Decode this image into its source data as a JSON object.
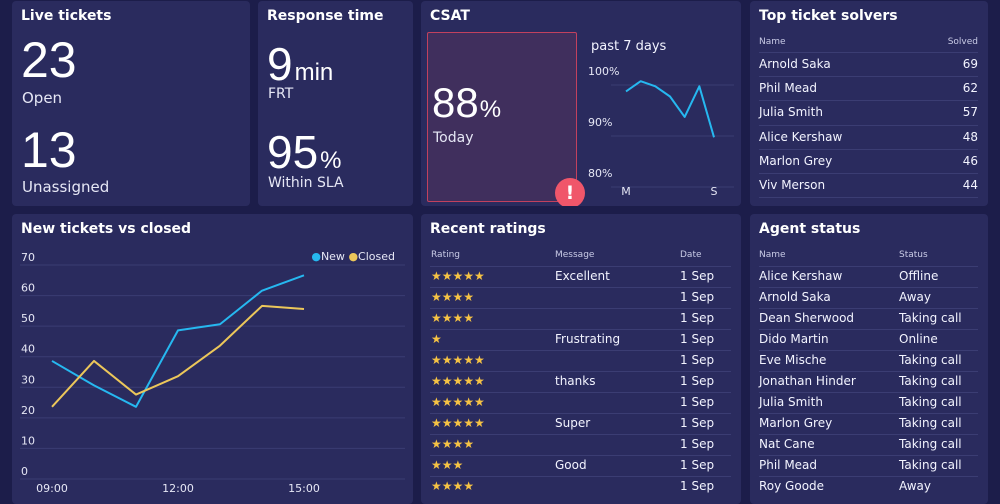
{
  "live_tickets": {
    "title": "Live tickets",
    "open_value": "23",
    "open_label": "Open",
    "unassigned_value": "13",
    "unassigned_label": "Unassigned"
  },
  "response_time": {
    "title": "Response time",
    "frt_value": "9",
    "frt_unit": "min",
    "frt_label": "FRT",
    "sla_value": "95",
    "sla_unit": "%",
    "sla_label": "Within SLA"
  },
  "csat": {
    "title": "CSAT",
    "today_value": "88",
    "today_unit": "%",
    "today_label": "Today",
    "alert_icon": "exclamation-icon",
    "alert_color": "#f0566a",
    "trend_title": "past 7 days",
    "chart_data": {
      "type": "line",
      "x": [
        "M",
        "T",
        "W",
        "T",
        "F",
        "S",
        "S"
      ],
      "x_tick_labels": [
        "M",
        "S"
      ],
      "series": [
        {
          "values": [
            96,
            98,
            97,
            95,
            91,
            97,
            87
          ],
          "color": "#26b8f0"
        }
      ],
      "y_tick_labels": [
        "100%",
        "90%",
        "80%"
      ],
      "ylim": [
        80,
        100
      ]
    }
  },
  "top_solvers": {
    "title": "Top ticket solvers",
    "col_name": "Name",
    "col_solved": "Solved",
    "rows": [
      {
        "name": "Arnold Saka",
        "solved": "69"
      },
      {
        "name": "Phil Mead",
        "solved": "62"
      },
      {
        "name": "Julia Smith",
        "solved": "57"
      },
      {
        "name": "Alice Kershaw",
        "solved": "48"
      },
      {
        "name": "Marlon Grey",
        "solved": "46"
      },
      {
        "name": "Viv Merson",
        "solved": "44"
      }
    ]
  },
  "new_vs_closed": {
    "title": "New tickets vs closed",
    "legend": [
      {
        "name": "New",
        "color": "#26b8f0"
      },
      {
        "name": "Closed",
        "color": "#ecc75a"
      }
    ],
    "chart_data": {
      "type": "line",
      "x": [
        "09:00",
        "10:00",
        "11:00",
        "12:00",
        "13:00",
        "14:00",
        "15:00"
      ],
      "x_tick_labels": [
        "09:00",
        "12:00",
        "15:00"
      ],
      "y_tick_labels": [
        "70",
        "60",
        "50",
        "40",
        "30",
        "20",
        "10",
        "0"
      ],
      "ylim": [
        0,
        70
      ],
      "grid": true,
      "series": [
        {
          "name": "New",
          "values": [
            36,
            28,
            21,
            46,
            48,
            59,
            64
          ]
        },
        {
          "name": "Closed",
          "values": [
            21,
            36,
            25,
            31,
            41,
            54,
            53
          ]
        }
      ]
    }
  },
  "recent_ratings": {
    "title": "Recent ratings",
    "col_rating": "Rating",
    "col_message": "Message",
    "col_date": "Date",
    "rows": [
      {
        "stars": 5,
        "message": "Excellent",
        "date": "1 Sep"
      },
      {
        "stars": 4,
        "message": "",
        "date": "1 Sep"
      },
      {
        "stars": 4,
        "message": "",
        "date": "1 Sep"
      },
      {
        "stars": 1,
        "message": "Frustrating",
        "date": "1 Sep"
      },
      {
        "stars": 5,
        "message": "",
        "date": "1 Sep"
      },
      {
        "stars": 5,
        "message": "thanks",
        "date": "1 Sep"
      },
      {
        "stars": 5,
        "message": "",
        "date": "1 Sep"
      },
      {
        "stars": 5,
        "message": "Super",
        "date": "1 Sep"
      },
      {
        "stars": 4,
        "message": "",
        "date": "1 Sep"
      },
      {
        "stars": 3,
        "message": "Good",
        "date": "1 Sep"
      },
      {
        "stars": 4,
        "message": "",
        "date": "1 Sep"
      }
    ]
  },
  "agent_status": {
    "title": "Agent status",
    "col_name": "Name",
    "col_status": "Status",
    "rows": [
      {
        "name": "Alice Kershaw",
        "status": "Offline"
      },
      {
        "name": "Arnold Saka",
        "status": "Away"
      },
      {
        "name": "Dean Sherwood",
        "status": "Taking call"
      },
      {
        "name": "Dido Martin",
        "status": "Online"
      },
      {
        "name": "Eve Mische",
        "status": "Taking call"
      },
      {
        "name": "Jonathan Hinder",
        "status": "Taking call"
      },
      {
        "name": "Julia Smith",
        "status": "Taking call"
      },
      {
        "name": "Marlon Grey",
        "status": "Taking call"
      },
      {
        "name": "Nat Cane",
        "status": "Taking call"
      },
      {
        "name": "Phil Mead",
        "status": "Taking call"
      },
      {
        "name": "Roy Goode",
        "status": "Away"
      }
    ]
  }
}
